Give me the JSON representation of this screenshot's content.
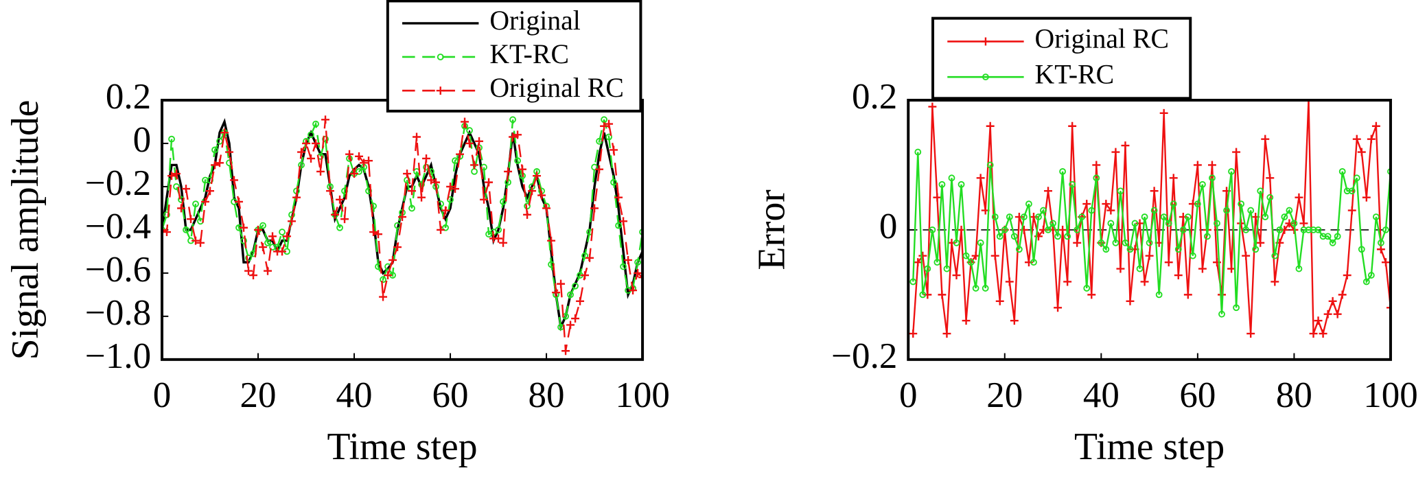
{
  "chart_data": [
    {
      "type": "line",
      "xlabel": "Time step",
      "ylabel": "Signal amplitude",
      "xlim": [
        0,
        100
      ],
      "ylim": [
        -1.0,
        0.2
      ],
      "xticks": [
        0,
        20,
        40,
        60,
        80,
        100
      ],
      "yticks": [
        0.2,
        0,
        {
          "value": -0.2,
          "label": "−0.2"
        },
        {
          "value": -0.4,
          "label": "−0.4"
        },
        {
          "value": -0.6,
          "label": "−0.6"
        },
        {
          "value": -0.8,
          "label": "−0.8"
        },
        {
          "value": -1.0,
          "label": "−1.0"
        }
      ],
      "legend": "upper right",
      "x": [
        0,
        1,
        2,
        3,
        4,
        5,
        6,
        7,
        8,
        9,
        10,
        11,
        12,
        13,
        14,
        15,
        16,
        17,
        18,
        19,
        20,
        21,
        22,
        23,
        24,
        25,
        26,
        27,
        28,
        29,
        30,
        31,
        32,
        33,
        34,
        35,
        36,
        37,
        38,
        39,
        40,
        41,
        42,
        43,
        44,
        45,
        46,
        47,
        48,
        49,
        50,
        51,
        52,
        53,
        54,
        55,
        56,
        57,
        58,
        59,
        60,
        61,
        62,
        63,
        64,
        65,
        66,
        67,
        68,
        69,
        70,
        71,
        72,
        73,
        74,
        75,
        76,
        77,
        78,
        79,
        80,
        81,
        82,
        83,
        84,
        85,
        86,
        87,
        88,
        89,
        90,
        91,
        92,
        93,
        94,
        95,
        96,
        97,
        98,
        99,
        100
      ],
      "series": [
        {
          "name": "Original",
          "color": "#000000",
          "linestyle": "solid",
          "marker": "none",
          "values": [
            -0.4,
            -0.25,
            -0.1,
            -0.1,
            -0.2,
            -0.4,
            -0.4,
            -0.35,
            -0.3,
            -0.25,
            -0.15,
            -0.1,
            0.05,
            0.1,
            0.0,
            -0.25,
            -0.3,
            -0.55,
            -0.55,
            -0.5,
            -0.4,
            -0.4,
            -0.45,
            -0.45,
            -0.5,
            -0.45,
            -0.45,
            -0.35,
            -0.25,
            -0.1,
            0.0,
            0.05,
            0.0,
            -0.05,
            -0.05,
            -0.2,
            -0.35,
            -0.3,
            -0.25,
            -0.15,
            -0.12,
            -0.1,
            -0.12,
            -0.2,
            -0.35,
            -0.55,
            -0.6,
            -0.58,
            -0.55,
            -0.4,
            -0.3,
            -0.2,
            -0.2,
            -0.15,
            -0.2,
            -0.15,
            -0.1,
            -0.2,
            -0.3,
            -0.35,
            -0.3,
            -0.15,
            -0.05,
            0.0,
            0.05,
            0.0,
            -0.05,
            -0.2,
            -0.3,
            -0.45,
            -0.4,
            -0.3,
            -0.15,
            0.05,
            -0.1,
            -0.2,
            -0.25,
            -0.2,
            -0.15,
            -0.25,
            -0.3,
            -0.5,
            -0.7,
            -0.85,
            -0.8,
            -0.7,
            -0.65,
            -0.6,
            -0.5,
            -0.4,
            -0.2,
            -0.05,
            0.05,
            -0.05,
            -0.15,
            -0.3,
            -0.5,
            -0.7,
            -0.65,
            -0.55,
            -0.5
          ]
        },
        {
          "name": "KT-RC",
          "color": "#22dd22",
          "linestyle": "dashed",
          "marker": "circle",
          "values": [
            -0.4,
            -0.33,
            0.02,
            -0.2,
            -0.26,
            -0.4,
            -0.45,
            -0.28,
            -0.36,
            -0.17,
            -0.17,
            -0.03,
            0.01,
            0.05,
            -0.09,
            -0.27,
            -0.39,
            -0.45,
            -0.53,
            -0.51,
            -0.4,
            -0.38,
            -0.46,
            -0.48,
            -0.48,
            -0.41,
            -0.5,
            -0.33,
            -0.22,
            -0.1,
            0.01,
            0.04,
            0.09,
            -0.06,
            0.02,
            -0.2,
            -0.33,
            -0.39,
            -0.22,
            -0.07,
            -0.14,
            -0.13,
            -0.11,
            -0.22,
            -0.29,
            -0.57,
            -0.63,
            -0.57,
            -0.61,
            -0.38,
            -0.32,
            -0.17,
            -0.3,
            -0.13,
            -0.19,
            -0.11,
            -0.13,
            -0.2,
            -0.28,
            -0.39,
            -0.26,
            -0.08,
            -0.06,
            0.08,
            0.06,
            -0.13,
            -0.02,
            -0.11,
            -0.42,
            -0.41,
            -0.4,
            -0.27,
            -0.18,
            0.11,
            -0.08,
            -0.15,
            -0.29,
            -0.2,
            -0.13,
            -0.22,
            -0.29,
            -0.56,
            -0.7,
            -0.85,
            -0.8,
            -0.7,
            -0.66,
            -0.61,
            -0.52,
            -0.41,
            -0.11,
            0.01,
            0.11,
            0.03,
            -0.18,
            -0.38,
            -0.57,
            -0.68,
            -0.67,
            -0.55,
            -0.41
          ]
        },
        {
          "name": "Original RC",
          "color": "#ee1111",
          "linestyle": "dashed",
          "marker": "plus",
          "values": [
            -0.4,
            -0.41,
            -0.15,
            -0.14,
            -0.3,
            -0.21,
            -0.35,
            -0.45,
            -0.46,
            -0.27,
            -0.22,
            -0.1,
            -0.09,
            0.05,
            -0.04,
            -0.17,
            -0.27,
            -0.39,
            -0.59,
            -0.61,
            -0.4,
            -0.48,
            -0.59,
            -0.43,
            -0.5,
            -0.5,
            -0.43,
            -0.36,
            -0.25,
            -0.04,
            0.0,
            -0.07,
            0.0,
            -0.13,
            0.11,
            -0.22,
            -0.33,
            -0.26,
            -0.35,
            -0.05,
            -0.14,
            -0.06,
            -0.09,
            -0.08,
            -0.41,
            -0.42,
            -0.71,
            -0.61,
            -0.54,
            -0.48,
            -0.34,
            -0.14,
            -0.22,
            0.03,
            -0.25,
            -0.07,
            -0.17,
            -0.18,
            -0.4,
            -0.31,
            -0.2,
            -0.21,
            -0.05,
            0.1,
            0.0,
            -0.1,
            0.01,
            -0.26,
            -0.18,
            -0.44,
            -0.44,
            -0.46,
            -0.13,
            0.03,
            0.04,
            -0.12,
            -0.33,
            -0.22,
            -0.15,
            -0.24,
            -0.3,
            -0.45,
            -0.69,
            -0.65,
            -0.96,
            -0.84,
            -0.81,
            -0.73,
            -0.61,
            -0.53,
            -0.3,
            -0.12,
            0.08,
            0.09,
            -0.03,
            -0.25,
            -0.36,
            -0.54,
            -0.68,
            -0.6,
            -0.62
          ]
        }
      ]
    },
    {
      "type": "line",
      "xlabel": "Time step",
      "ylabel": "Error",
      "xlim": [
        0,
        100
      ],
      "ylim": [
        -0.2,
        0.2
      ],
      "xticks": [
        0,
        20,
        40,
        60,
        80,
        100
      ],
      "yticks": [
        0.2,
        0,
        {
          "value": -0.2,
          "label": "−0.2"
        }
      ],
      "hline": 0,
      "legend": "upper left",
      "x": [
        0,
        1,
        2,
        3,
        4,
        5,
        6,
        7,
        8,
        9,
        10,
        11,
        12,
        13,
        14,
        15,
        16,
        17,
        18,
        19,
        20,
        21,
        22,
        23,
        24,
        25,
        26,
        27,
        28,
        29,
        30,
        31,
        32,
        33,
        34,
        35,
        36,
        37,
        38,
        39,
        40,
        41,
        42,
        43,
        44,
        45,
        46,
        47,
        48,
        49,
        50,
        51,
        52,
        53,
        54,
        55,
        56,
        57,
        58,
        59,
        60,
        61,
        62,
        63,
        64,
        65,
        66,
        67,
        68,
        69,
        70,
        71,
        72,
        73,
        74,
        75,
        76,
        77,
        78,
        79,
        80,
        81,
        82,
        83,
        84,
        85,
        86,
        87,
        88,
        89,
        90,
        91,
        92,
        93,
        94,
        95,
        96,
        97,
        98,
        99,
        100
      ],
      "series": [
        {
          "name": "Original RC",
          "color": "#ee1111",
          "linestyle": "solid",
          "marker": "plus",
          "values": [
            null,
            -0.16,
            -0.05,
            -0.04,
            -0.1,
            0.19,
            0.05,
            -0.1,
            -0.16,
            -0.02,
            -0.07,
            0.0,
            -0.14,
            -0.05,
            -0.04,
            0.08,
            0.03,
            0.16,
            -0.04,
            -0.11,
            0.0,
            -0.08,
            -0.14,
            0.02,
            0.0,
            -0.05,
            0.02,
            -0.01,
            0.0,
            0.06,
            0.0,
            -0.12,
            0.0,
            -0.08,
            0.16,
            -0.02,
            0.02,
            0.04,
            -0.1,
            0.1,
            -0.02,
            0.04,
            0.03,
            0.12,
            -0.06,
            0.13,
            -0.11,
            -0.03,
            0.01,
            -0.08,
            -0.04,
            0.06,
            -0.02,
            0.18,
            -0.05,
            0.08,
            -0.07,
            0.02,
            -0.1,
            0.04,
            0.1,
            -0.06,
            0.0,
            0.1,
            -0.05,
            -0.1,
            0.06,
            -0.06,
            0.12,
            0.01,
            -0.04,
            -0.16,
            0.02,
            -0.02,
            0.14,
            0.08,
            -0.08,
            -0.02,
            0.0,
            0.01,
            0.0,
            0.05,
            0.01,
            0.2,
            -0.16,
            -0.14,
            -0.16,
            -0.13,
            -0.11,
            -0.13,
            -0.1,
            -0.07,
            0.03,
            0.14,
            0.12,
            0.05,
            0.14,
            0.16,
            -0.03,
            -0.05,
            -0.12
          ]
        },
        {
          "name": "KT-RC",
          "color": "#22dd22",
          "linestyle": "solid",
          "marker": "circle",
          "values": [
            null,
            -0.08,
            0.12,
            -0.1,
            -0.06,
            0.0,
            -0.05,
            0.07,
            -0.06,
            0.08,
            -0.02,
            0.07,
            -0.04,
            -0.05,
            -0.09,
            -0.02,
            -0.09,
            0.1,
            0.02,
            -0.01,
            0.0,
            0.02,
            -0.01,
            -0.03,
            0.02,
            0.04,
            -0.05,
            0.02,
            0.03,
            0.0,
            0.01,
            -0.01,
            0.09,
            -0.01,
            0.07,
            0.0,
            0.02,
            -0.09,
            0.03,
            0.08,
            -0.02,
            -0.03,
            0.01,
            -0.02,
            0.06,
            -0.02,
            -0.03,
            0.01,
            -0.06,
            0.02,
            -0.02,
            0.03,
            -0.1,
            0.02,
            0.01,
            0.04,
            -0.03,
            0.0,
            0.02,
            -0.04,
            0.04,
            0.07,
            -0.01,
            0.08,
            0.01,
            -0.13,
            0.03,
            0.09,
            -0.12,
            0.04,
            0.0,
            0.03,
            -0.03,
            0.06,
            0.02,
            0.05,
            -0.04,
            0.0,
            0.02,
            0.03,
            0.01,
            -0.06,
            0.0,
            0.0,
            0.0,
            0.0,
            -0.01,
            -0.01,
            -0.02,
            -0.01,
            0.09,
            0.06,
            0.06,
            0.08,
            -0.03,
            -0.08,
            -0.07,
            0.02,
            -0.02,
            0.0,
            0.09
          ]
        }
      ]
    }
  ]
}
